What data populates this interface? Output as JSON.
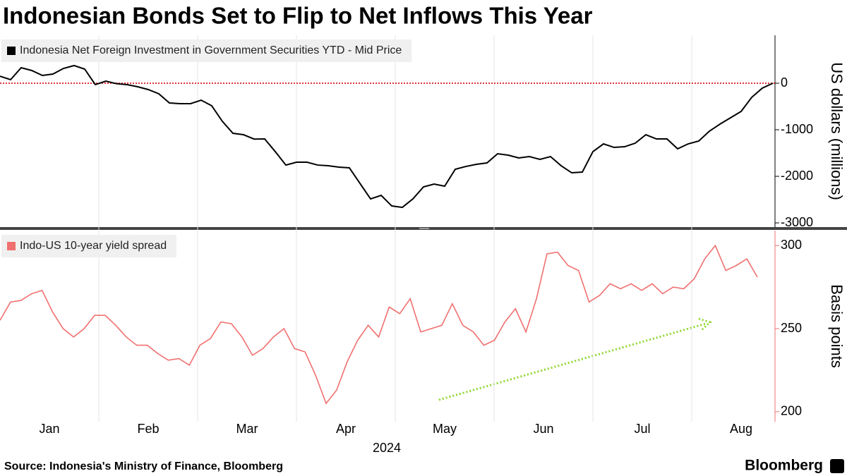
{
  "title": "Indonesian Bonds Set to Flip to Net Inflows This Year",
  "source": "Source: Indonesia's Ministry of Finance, Bloomberg",
  "logo": "Bloomberg",
  "months": [
    "Jan",
    "Feb",
    "Mar",
    "Apr",
    "May",
    "Jun",
    "Jul",
    "Aug"
  ],
  "year": "2024",
  "chart_data": [
    {
      "type": "line",
      "series": [
        {
          "name": "Indonesia Net Foreign Investment in Government Securities YTD - Mid Price",
          "color": "#000000",
          "values": [
            150,
            76,
            333,
            273,
            167,
            197,
            318,
            379,
            303,
            -30,
            45,
            -10,
            -30,
            -76,
            -136,
            -227,
            -424,
            -439,
            -439,
            -364,
            -485,
            -818,
            -1076,
            -1106,
            -1200,
            -1197,
            -1470,
            -1758,
            -1697,
            -1697,
            -1758,
            -1773,
            -1803,
            -1818,
            -2152,
            -2485,
            -2409,
            -2636,
            -2667,
            -2485,
            -2227,
            -2167,
            -2212,
            -1848,
            -1788,
            -1742,
            -1712,
            -1515,
            -1545,
            -1606,
            -1576,
            -1636,
            -1576,
            -1773,
            -1924,
            -1909,
            -1470,
            -1303,
            -1379,
            -1364,
            -1288,
            -1106,
            -1197,
            -1197,
            -1409,
            -1303,
            -1242,
            -1030,
            -879,
            -742,
            -606,
            -303,
            -106,
            0
          ]
        }
      ],
      "ylim": [
        -3090,
        1030
      ],
      "yticks": [
        -3000,
        -2000,
        -1000,
        0
      ],
      "ylabel": "US dollars (millions)",
      "hline": 0,
      "hline_color": "#e0303a"
    },
    {
      "type": "line",
      "series": [
        {
          "name": "Indo-US 10-year yield spread",
          "color": "#f07070",
          "values": [
            255,
            266,
            267,
            271,
            273,
            260,
            250,
            245,
            250,
            258,
            258,
            252,
            245,
            240,
            240,
            235,
            231,
            232,
            228,
            240,
            244,
            254,
            253,
            245,
            234,
            238,
            245,
            250,
            238,
            236,
            222,
            205,
            213,
            230,
            243,
            252,
            245,
            263,
            259,
            268,
            248,
            250,
            252,
            265,
            252,
            248,
            240,
            243,
            254,
            262,
            248,
            268,
            295,
            296,
            288,
            285,
            266,
            270,
            277,
            274,
            277,
            273,
            277,
            271,
            275,
            274,
            280,
            292,
            300,
            285,
            288,
            292,
            281
          ]
        }
      ],
      "ylim": [
        194,
        309
      ],
      "yticks": [
        200,
        250,
        300
      ],
      "ylabel": "Basis points"
    }
  ]
}
